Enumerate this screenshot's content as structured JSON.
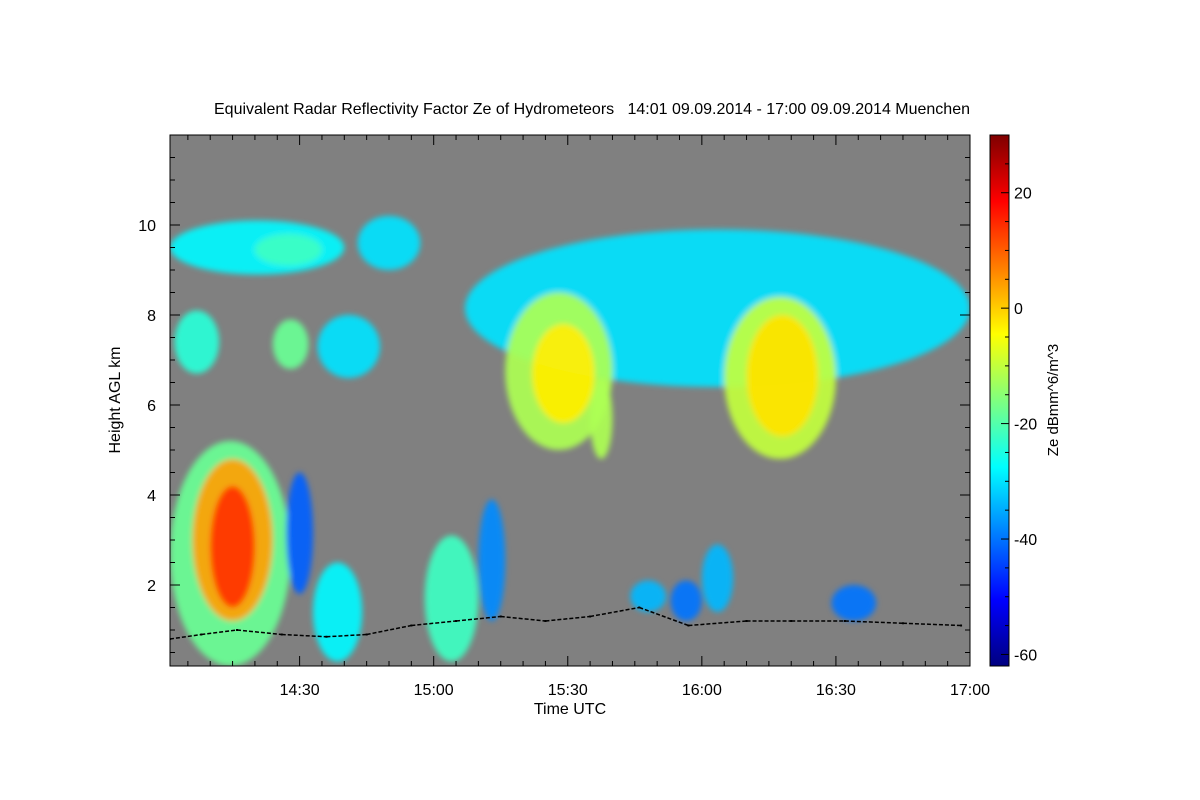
{
  "chart_data": {
    "type": "heatmap",
    "title": "Equivalent Radar Reflectivity Factor Ze of Hydrometeors   14:01 09.09.2014 - 17:00 09.09.2014 Muenchen",
    "xlabel": "Time UTC",
    "ylabel": "Height AGL km",
    "colorbar_label": "Ze dBmm^6/m^3",
    "x_ticks": [
      "14:30",
      "15:00",
      "15:30",
      "16:00",
      "16:30",
      "17:00"
    ],
    "x_tick_minutes": [
      30,
      60,
      90,
      120,
      150,
      180
    ],
    "xlim_minutes": [
      1,
      180
    ],
    "y_ticks": [
      "2",
      "4",
      "6",
      "8",
      "10"
    ],
    "y_tick_values": [
      2,
      4,
      6,
      8,
      10
    ],
    "ylim_km": [
      0.2,
      12
    ],
    "colorbar_ticks": [
      "20",
      "0",
      "-20",
      "-40",
      "-60"
    ],
    "colorbar_tick_values": [
      20,
      0,
      -20,
      -40,
      -60
    ],
    "colorbar_range": [
      -62,
      30
    ],
    "background_color": "#808080",
    "colormap": [
      "#00007f",
      "#0000ff",
      "#007fff",
      "#00ffff",
      "#7fff7f",
      "#ffff00",
      "#ff7f00",
      "#ff0000",
      "#7f0000"
    ],
    "echo_features": [
      {
        "t0": 1,
        "t1": 40,
        "z0": 8.9,
        "z1": 10.1,
        "ze": -28
      },
      {
        "t0": 20,
        "t1": 35,
        "z0": 9.1,
        "z1": 9.8,
        "ze": -22
      },
      {
        "t0": 2,
        "t1": 12,
        "z0": 6.7,
        "z1": 8.1,
        "ze": -24
      },
      {
        "t0": 24,
        "t1": 32,
        "z0": 6.8,
        "z1": 7.9,
        "ze": -18
      },
      {
        "t0": 34,
        "t1": 48,
        "z0": 6.6,
        "z1": 8.0,
        "ze": -30
      },
      {
        "t0": 43,
        "t1": 57,
        "z0": 9.0,
        "z1": 10.2,
        "ze": -30
      },
      {
        "t0": 67,
        "t1": 180,
        "z0": 6.4,
        "z1": 9.9,
        "ze": -30
      },
      {
        "t0": 76,
        "t1": 100,
        "z0": 5.0,
        "z1": 8.5,
        "ze": -12
      },
      {
        "t0": 82,
        "t1": 96,
        "z0": 5.6,
        "z1": 7.8,
        "ze": -3
      },
      {
        "t0": 95,
        "t1": 100,
        "z0": 4.8,
        "z1": 6.6,
        "ze": -12
      },
      {
        "t0": 125,
        "t1": 150,
        "z0": 4.8,
        "z1": 8.4,
        "ze": -10
      },
      {
        "t0": 130,
        "t1": 146,
        "z0": 5.3,
        "z1": 8.0,
        "ze": -2
      },
      {
        "t0": 1,
        "t1": 28,
        "z0": 0.2,
        "z1": 5.2,
        "ze": -18
      },
      {
        "t0": 6,
        "t1": 24,
        "z0": 1.2,
        "z1": 4.8,
        "ze": 4
      },
      {
        "t0": 10,
        "t1": 20,
        "z0": 1.5,
        "z1": 4.2,
        "ze": 14
      },
      {
        "t0": 27,
        "t1": 33,
        "z0": 1.8,
        "z1": 4.5,
        "ze": -42
      },
      {
        "t0": 33,
        "t1": 44,
        "z0": 0.3,
        "z1": 2.5,
        "ze": -28
      },
      {
        "t0": 58,
        "t1": 70,
        "z0": 0.3,
        "z1": 3.1,
        "ze": -22
      },
      {
        "t0": 70,
        "t1": 76,
        "z0": 1.2,
        "z1": 3.9,
        "ze": -38
      },
      {
        "t0": 104,
        "t1": 112,
        "z0": 1.4,
        "z1": 2.1,
        "ze": -34
      },
      {
        "t0": 113,
        "t1": 120,
        "z0": 1.2,
        "z1": 2.1,
        "ze": -40
      },
      {
        "t0": 120,
        "t1": 127,
        "z0": 1.4,
        "z1": 2.9,
        "ze": -34
      },
      {
        "t0": 149,
        "t1": 159,
        "z0": 1.2,
        "z1": 2.0,
        "ze": -40
      }
    ],
    "cloud_base_markers": [
      [
        1,
        0.8
      ],
      [
        8,
        0.9
      ],
      [
        16,
        1.0
      ],
      [
        26,
        0.9
      ],
      [
        36,
        0.85
      ],
      [
        45,
        0.9
      ],
      [
        55,
        1.1
      ],
      [
        65,
        1.2
      ],
      [
        75,
        1.3
      ],
      [
        85,
        1.2
      ],
      [
        95,
        1.3
      ],
      [
        106,
        1.5
      ],
      [
        117,
        1.1
      ],
      [
        130,
        1.2
      ],
      [
        140,
        1.2
      ],
      [
        152,
        1.2
      ],
      [
        165,
        1.15
      ],
      [
        178,
        1.1
      ]
    ]
  }
}
